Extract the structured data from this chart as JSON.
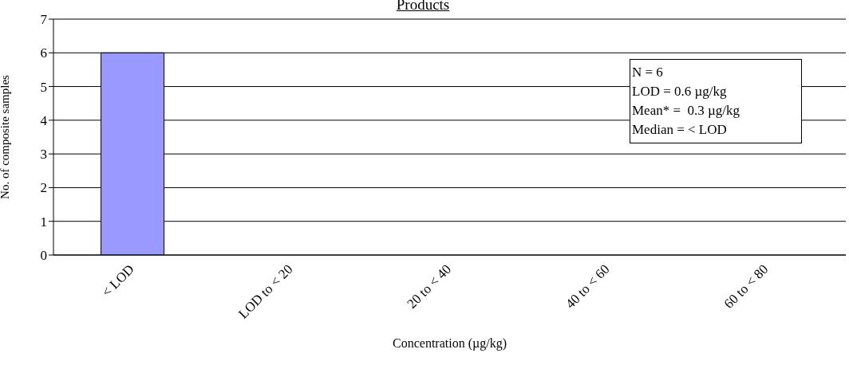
{
  "chart_data": {
    "type": "bar",
    "title": "Products",
    "xlabel": "Concentration (µg/kg)",
    "ylabel": "No. of composite samples",
    "categories": [
      "< LOD",
      "LOD to < 20",
      "20 to < 40",
      "40 to < 60",
      "60 to < 80"
    ],
    "values": [
      6,
      0,
      0,
      0,
      0
    ],
    "color": "#9999ff",
    "ylim": [
      0,
      7
    ],
    "yticks": [
      0,
      1,
      2,
      3,
      4,
      5,
      6,
      7
    ],
    "grid": "y",
    "annotations": [
      "N = 6",
      "LOD = 0.6 µg/kg",
      "Mean* =  0.3 µg/kg",
      "Median = < LOD"
    ]
  }
}
